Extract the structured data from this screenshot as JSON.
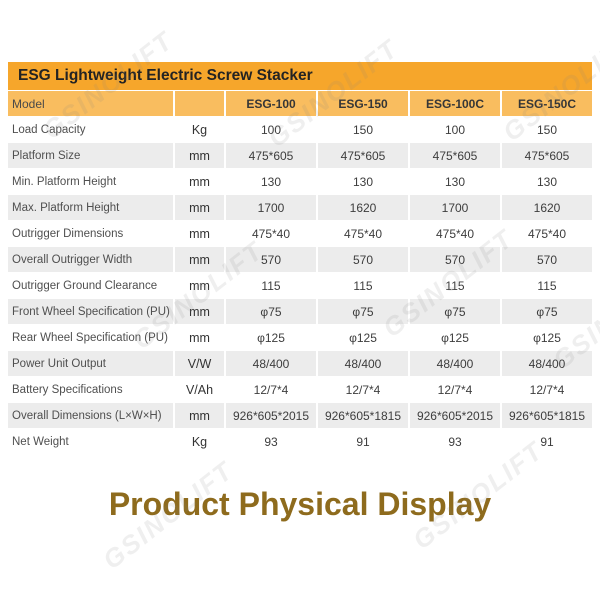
{
  "table": {
    "title": "ESG Lightweight Electric Screw Stacker",
    "header": {
      "label": "Model",
      "unit": "",
      "models": [
        "ESG-100",
        "ESG-150",
        "ESG-100C",
        "ESG-150C"
      ]
    },
    "rows": [
      {
        "label": "Load Capacity",
        "unit": "Kg",
        "values": [
          "100",
          "150",
          "100",
          "150"
        ]
      },
      {
        "label": "Platform Size",
        "unit": "mm",
        "values": [
          "475*605",
          "475*605",
          "475*605",
          "475*605"
        ]
      },
      {
        "label": "Min. Platform Height",
        "unit": "mm",
        "values": [
          "130",
          "130",
          "130",
          "130"
        ]
      },
      {
        "label": "Max. Platform Height",
        "unit": "mm",
        "values": [
          "1700",
          "1620",
          "1700",
          "1620"
        ]
      },
      {
        "label": "Outrigger Dimensions",
        "unit": "mm",
        "values": [
          "475*40",
          "475*40",
          "475*40",
          "475*40"
        ]
      },
      {
        "label": "Overall Outrigger Width",
        "unit": "mm",
        "values": [
          "570",
          "570",
          "570",
          "570"
        ]
      },
      {
        "label": "Outrigger Ground Clearance",
        "unit": "mm",
        "values": [
          "115",
          "115",
          "115",
          "115"
        ]
      },
      {
        "label": "Front Wheel Specification (PU)",
        "unit": "mm",
        "values": [
          "φ75",
          "φ75",
          "φ75",
          "φ75"
        ]
      },
      {
        "label": "Rear Wheel Specification (PU)",
        "unit": "mm",
        "values": [
          "φ125",
          "φ125",
          "φ125",
          "φ125"
        ]
      },
      {
        "label": "Power Unit Output",
        "unit": "V/W",
        "values": [
          "48/400",
          "48/400",
          "48/400",
          "48/400"
        ]
      },
      {
        "label": "Battery Specifications",
        "unit": "V/Ah",
        "values": [
          "12/7*4",
          "12/7*4",
          "12/7*4",
          "12/7*4"
        ]
      },
      {
        "label": "Overall Dimensions (L×W×H)",
        "unit": "mm",
        "values": [
          "926*605*2015",
          "926*605*1815",
          "926*605*2015",
          "926*605*1815"
        ]
      },
      {
        "label": "Net Weight",
        "unit": "Kg",
        "values": [
          "93",
          "91",
          "93",
          "91"
        ]
      }
    ]
  },
  "footer": {
    "heading": "Product Physical Display"
  },
  "watermark": {
    "text": "GSINOLIFT"
  },
  "colors": {
    "header_orange": "#F6A62B",
    "model_row_orange": "#F9BD5F",
    "row_alt_gray": "#ECECEC",
    "heading_brown": "#8E6B1D"
  }
}
